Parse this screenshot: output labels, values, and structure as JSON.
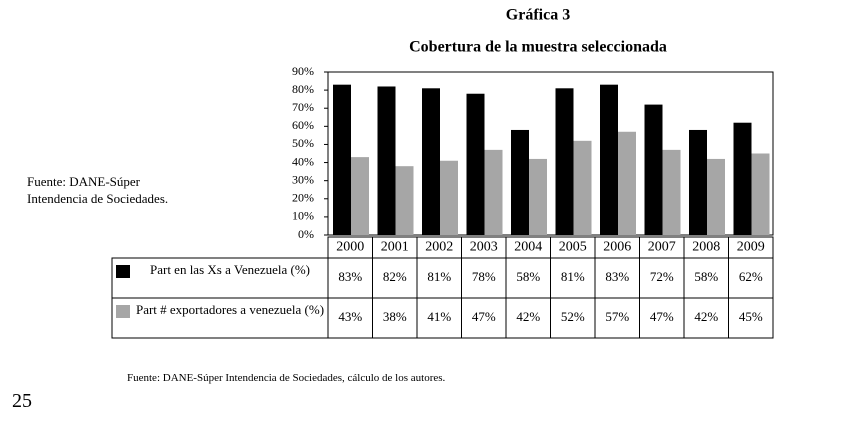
{
  "chart_data": {
    "type": "bar",
    "title": "Gráfica 3",
    "subtitle": "Cobertura de la muestra seleccionada",
    "categories": [
      "2000",
      "2001",
      "2002",
      "2003",
      "2004",
      "2005",
      "2006",
      "2007",
      "2008",
      "2009"
    ],
    "series": [
      {
        "name": "Part en las Xs a Venezuela (%)",
        "color": "#000000",
        "values": [
          83,
          82,
          81,
          78,
          58,
          81,
          83,
          72,
          58,
          62
        ],
        "value_labels": [
          "83%",
          "82%",
          "81%",
          "78%",
          "58%",
          "81%",
          "83%",
          "72%",
          "58%",
          "62%"
        ]
      },
      {
        "name": "Part # exportadores a venezuela (%)",
        "color": "#a6a6a6",
        "values": [
          43,
          38,
          41,
          47,
          42,
          52,
          57,
          47,
          42,
          45
        ],
        "value_labels": [
          "43%",
          "38%",
          "41%",
          "47%",
          "42%",
          "52%",
          "57%",
          "47%",
          "42%",
          "45%"
        ]
      }
    ],
    "ylim": [
      0,
      90
    ],
    "yticks": [
      {
        "value": 0,
        "label": "0%"
      },
      {
        "value": 10,
        "label": "10%"
      },
      {
        "value": 20,
        "label": "20%"
      },
      {
        "value": 30,
        "label": "30%"
      },
      {
        "value": 40,
        "label": "40%"
      },
      {
        "value": 50,
        "label": "50%"
      },
      {
        "value": 60,
        "label": "60%"
      },
      {
        "value": 70,
        "label": "70%"
      },
      {
        "value": 80,
        "label": "80%"
      },
      {
        "value": 90,
        "label": "90%"
      }
    ],
    "grid": false,
    "side_note": "Fuente: DANE-Súper Intendencia de Sociedades.",
    "source": "Fuente: DANE-Súper Intendencia de Sociedades, cálculo de los autores."
  },
  "page_number": "25"
}
